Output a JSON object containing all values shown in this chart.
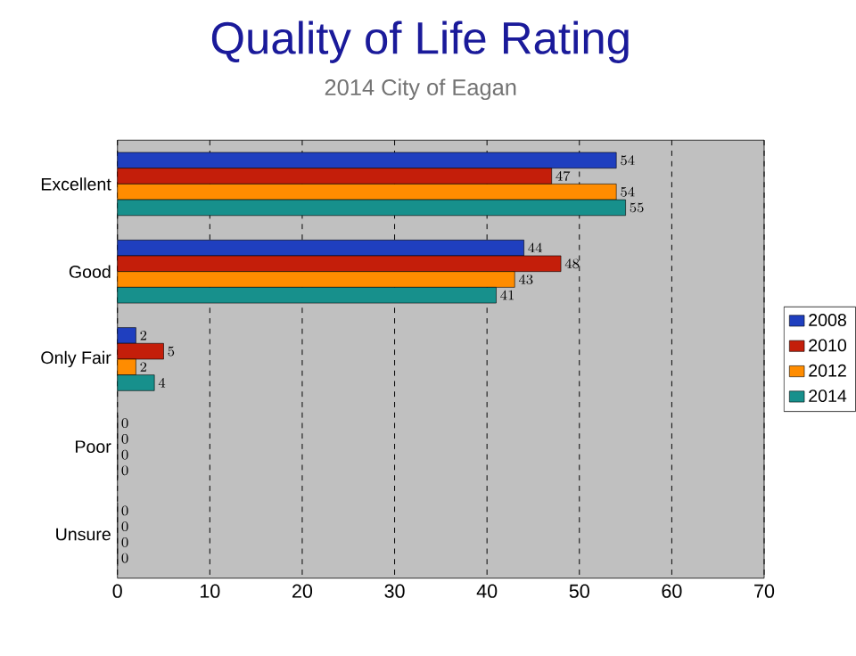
{
  "chart_data": {
    "type": "bar",
    "orientation": "horizontal",
    "title": "Quality of Life Rating",
    "subtitle": "2014 City of Eagan",
    "categories": [
      "Excellent",
      "Good",
      "Only Fair",
      "Poor",
      "Unsure"
    ],
    "series": [
      {
        "name": "2008",
        "color": "#1f3fbf",
        "values": [
          54,
          44,
          2,
          0,
          0
        ]
      },
      {
        "name": "2010",
        "color": "#c41e0a",
        "values": [
          47,
          48,
          5,
          0,
          0
        ]
      },
      {
        "name": "2012",
        "color": "#ff8c00",
        "values": [
          54,
          43,
          2,
          0,
          0
        ]
      },
      {
        "name": "2014",
        "color": "#17908c",
        "values": [
          55,
          41,
          4,
          0,
          0
        ]
      }
    ],
    "xlim": [
      0,
      70
    ],
    "xticks": [
      0,
      10,
      20,
      30,
      40,
      50,
      60,
      70
    ],
    "grid": "x",
    "legend": "right",
    "data_labels": true
  }
}
